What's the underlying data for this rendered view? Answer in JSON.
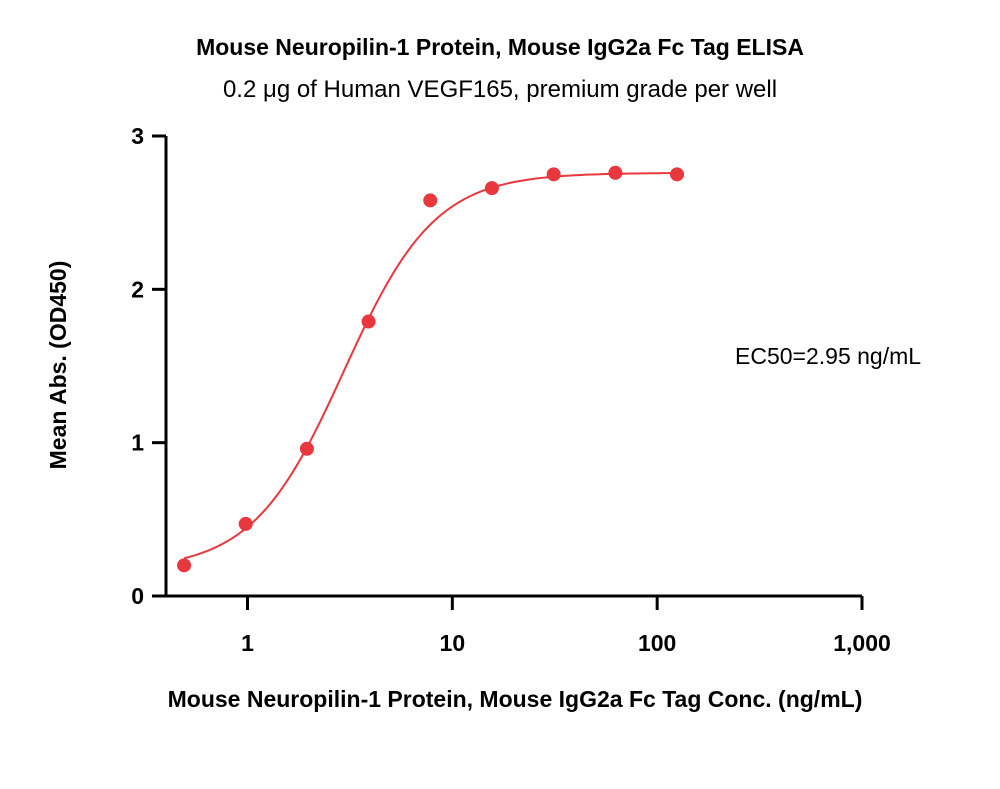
{
  "chart_data": {
    "type": "scatter",
    "title": "Mouse Neuropilin-1 Protein, Mouse IgG2a Fc Tag ELISA",
    "subtitle": "0.2 μg of Human VEGF165, premium grade per well",
    "xlabel": "Mouse Neuropilin-1 Protein, Mouse IgG2a Fc Tag Conc. (ng/mL)",
    "ylabel": "Mean Abs. (OD450)",
    "x_scale": "log10",
    "xlim": [
      0.4,
      1000
    ],
    "ylim": [
      0,
      3
    ],
    "x_ticks": [
      1,
      10,
      100,
      1000
    ],
    "x_tick_labels": [
      "1",
      "10",
      "100",
      "1,000"
    ],
    "y_ticks": [
      0,
      1,
      2,
      3
    ],
    "y_tick_labels": [
      "0",
      "1",
      "2",
      "3"
    ],
    "grid": false,
    "annotation": "EC50=2.95 ng/mL",
    "colors": {
      "series": "#e8383d",
      "axis": "#000000"
    },
    "series": [
      {
        "points": [
          {
            "x": 0.49,
            "y": 0.2
          },
          {
            "x": 0.98,
            "y": 0.47
          },
          {
            "x": 1.95,
            "y": 0.96
          },
          {
            "x": 3.9,
            "y": 1.79
          },
          {
            "x": 7.8,
            "y": 2.58
          },
          {
            "x": 15.6,
            "y": 2.66
          },
          {
            "x": 31.25,
            "y": 2.75
          },
          {
            "x": 62.5,
            "y": 2.76
          },
          {
            "x": 125,
            "y": 2.75
          }
        ],
        "fit": {
          "model": "4PL",
          "bottom": 0.17,
          "top": 2.76,
          "ec50": 2.95,
          "hill": 1.95
        }
      }
    ]
  }
}
